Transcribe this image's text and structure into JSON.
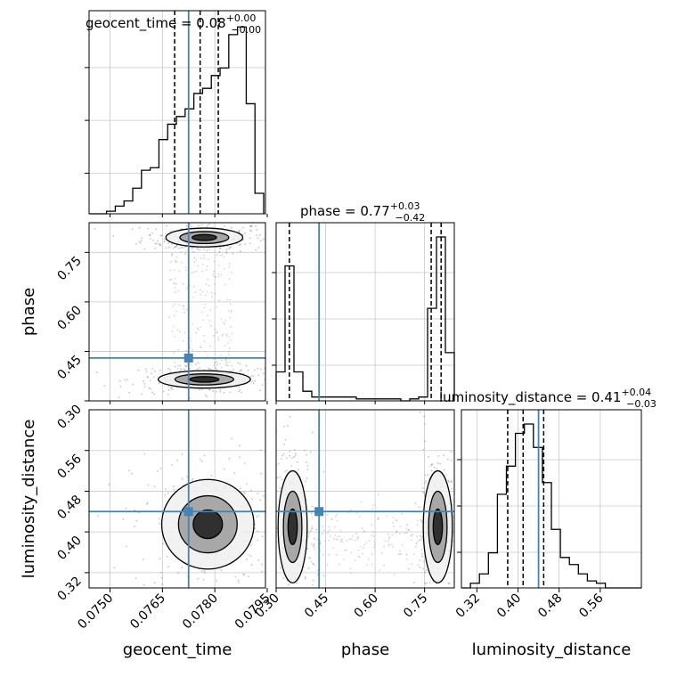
{
  "chart_data": {
    "type": "corner",
    "parameters": [
      {
        "name": "geocent_time",
        "axis_label": "geocent_time",
        "range": [
          0.0744,
          0.07945
        ],
        "ticks": [
          "0.0750",
          "0.0765",
          "0.0780",
          "0.0795"
        ],
        "truth": 0.07725
      },
      {
        "name": "phase",
        "axis_label": "phase",
        "range": [
          0.3,
          0.84
        ],
        "ticks": [
          "0.30",
          "0.45",
          "0.60",
          "0.75"
        ],
        "truth": 0.43
      },
      {
        "name": "luminosity_distance",
        "axis_label": "luminosity_distance",
        "range": [
          0.29,
          0.64
        ],
        "ticks": [
          "0.32",
          "0.40",
          "0.48",
          "0.56"
        ],
        "truth": 0.44
      }
    ],
    "titles": [
      {
        "base": "geocent_time = 0.08",
        "sup": "+0.00",
        "sub": "−0.00"
      },
      {
        "base": "phase = 0.77",
        "sup": "+0.03",
        "sub": "−0.42"
      },
      {
        "base": "luminosity_distance = 0.41",
        "sup": "+0.04",
        "sub": "−0.03"
      }
    ],
    "histograms": [
      {
        "param": "geocent_time",
        "bin_edges": [
          0.0744,
          0.07465,
          0.0749,
          0.07515,
          0.0754,
          0.07565,
          0.0759,
          0.07615,
          0.0764,
          0.07665,
          0.0769,
          0.07715,
          0.0774,
          0.07765,
          0.0779,
          0.07815,
          0.0784,
          0.07865,
          0.0789,
          0.07915,
          0.0794
        ],
        "counts": [
          0,
          0,
          1,
          3,
          5,
          10,
          17,
          18,
          29,
          35,
          38,
          41,
          47,
          49,
          54,
          57,
          70,
          73,
          43,
          8
        ],
        "quantiles": [
          0.07685,
          0.07758,
          0.0781
        ]
      },
      {
        "param": "phase",
        "bin_edges": [
          0.3,
          0.327,
          0.354,
          0.381,
          0.408,
          0.435,
          0.462,
          0.489,
          0.516,
          0.543,
          0.57,
          0.597,
          0.624,
          0.651,
          0.678,
          0.705,
          0.732,
          0.759,
          0.786,
          0.813,
          0.84
        ],
        "counts": [
          15,
          70,
          15,
          5,
          2,
          2,
          2,
          2,
          2,
          1,
          1,
          1,
          1,
          1,
          0,
          1,
          2,
          48,
          85,
          25
        ],
        "quantiles": [
          0.34,
          0.77,
          0.8
        ]
      },
      {
        "param": "luminosity_distance",
        "bin_edges": [
          0.29,
          0.3075,
          0.325,
          0.3425,
          0.36,
          0.3775,
          0.395,
          0.4125,
          0.43,
          0.4475,
          0.465,
          0.4825,
          0.5,
          0.5175,
          0.535,
          0.5525,
          0.57,
          0.5875,
          0.605,
          0.6225,
          0.64
        ],
        "counts": [
          0,
          2,
          6,
          15,
          40,
          52,
          66,
          70,
          60,
          45,
          25,
          13,
          10,
          6,
          3,
          2,
          0,
          0,
          0,
          0
        ],
        "quantiles": [
          0.38,
          0.41,
          0.45
        ]
      }
    ],
    "contours": [
      {
        "x": "geocent_time",
        "y": "phase",
        "modes": [
          {
            "center": [
              0.0777,
              0.795
            ],
            "spread": [
              0.0005,
              0.013
            ]
          },
          {
            "center": [
              0.0777,
              0.365
            ],
            "spread": [
              0.0006,
              0.012
            ]
          }
        ]
      },
      {
        "x": "geocent_time",
        "y": "luminosity_distance",
        "modes": [
          {
            "center": [
              0.0778,
              0.415
            ],
            "spread": [
              0.0006,
              0.04
            ]
          }
        ]
      },
      {
        "x": "phase",
        "y": "luminosity_distance",
        "modes": [
          {
            "center": [
              0.35,
              0.41
            ],
            "spread": [
              0.02,
              0.05
            ]
          },
          {
            "center": [
              0.79,
              0.41
            ],
            "spread": [
              0.02,
              0.05
            ]
          }
        ]
      }
    ],
    "truth_color": "#4682b4",
    "grid": true
  }
}
